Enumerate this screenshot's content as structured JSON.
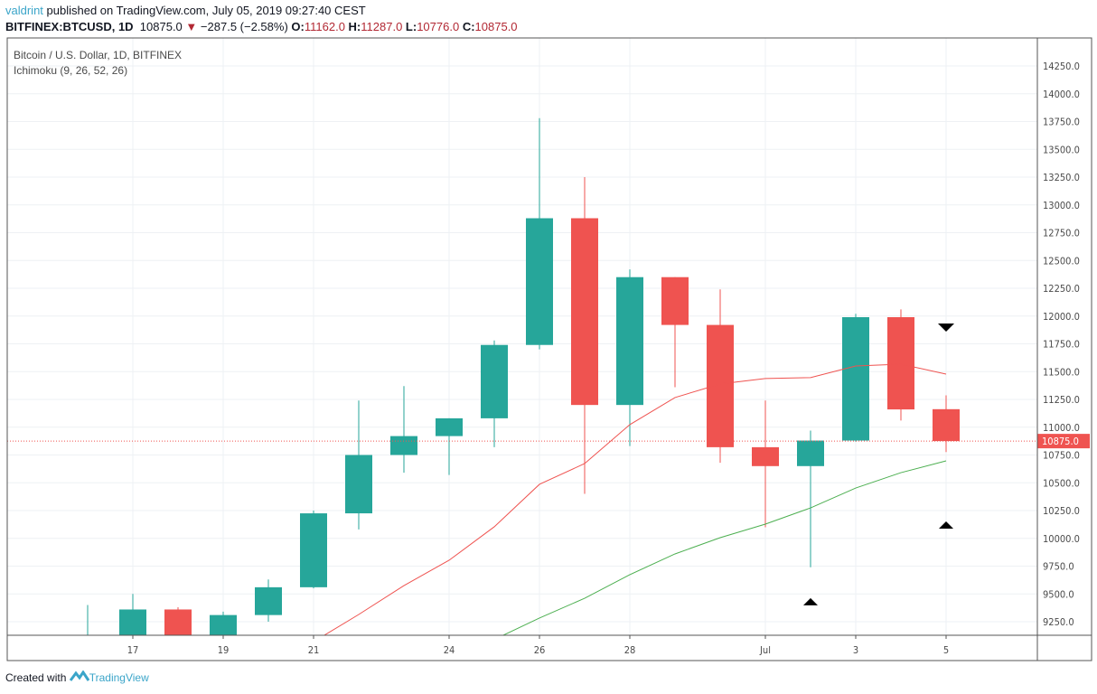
{
  "header": {
    "author": "valdrint",
    "published": " published on TradingView.com, July 05, 2019 09:27:40 CEST",
    "symbol": "BITFINEX:BTCUSD, 1D",
    "last": "10875.0",
    "change": "−287.5 (−2.58%)",
    "o_label": "O:",
    "o": "11162.0",
    "h_label": "H:",
    "h": "11287.0",
    "l_label": "L:",
    "l": "10776.0",
    "c_label": "C:",
    "c": "10875.0"
  },
  "legend": {
    "title": "Bitcoin / U.S. Dollar, 1D, BITFINEX",
    "indicator": "Ichimoku (9, 26, 52, 26)"
  },
  "footer": {
    "created": "Created with",
    "brand": "TradingView"
  },
  "chart_data": {
    "type": "candlestick",
    "ylim": [
      9150,
      14400
    ],
    "yticks": [
      9250,
      9500,
      9750,
      10000,
      10250,
      10500,
      10750,
      11000,
      11250,
      11500,
      11750,
      12000,
      12250,
      12500,
      12750,
      13000,
      13250,
      13500,
      13750,
      14000,
      14250
    ],
    "xticks": [
      {
        "day": "2019-06-17",
        "label": "17"
      },
      {
        "day": "2019-06-19",
        "label": "19"
      },
      {
        "day": "2019-06-21",
        "label": "21"
      },
      {
        "day": "2019-06-24",
        "label": "24"
      },
      {
        "day": "2019-06-26",
        "label": "26"
      },
      {
        "day": "2019-06-28",
        "label": "28"
      },
      {
        "day": "2019-07-01",
        "label": "Jul"
      },
      {
        "day": "2019-07-03",
        "label": "3"
      },
      {
        "day": "2019-07-05",
        "label": "5"
      }
    ],
    "grid": true,
    "colors": {
      "up": "#26a69a",
      "down": "#ef5350",
      "tenkan": "#ef5350",
      "kijun": "#4caf50"
    },
    "candles": [
      {
        "d": "2019-06-16",
        "o": 9000,
        "h": 9400,
        "l": 8900,
        "c": 9000
      },
      {
        "d": "2019-06-17",
        "o": 9000,
        "h": 9500,
        "l": 8950,
        "c": 9360
      },
      {
        "d": "2019-06-18",
        "o": 9360,
        "h": 9380,
        "l": 9000,
        "c": 9050
      },
      {
        "d": "2019-06-19",
        "o": 9050,
        "h": 9340,
        "l": 9000,
        "c": 9310
      },
      {
        "d": "2019-06-20",
        "o": 9310,
        "h": 9630,
        "l": 9250,
        "c": 9560
      },
      {
        "d": "2019-06-21",
        "o": 9560,
        "h": 10250,
        "l": 9550,
        "c": 10225
      },
      {
        "d": "2019-06-22",
        "o": 10225,
        "h": 11240,
        "l": 10080,
        "c": 10750
      },
      {
        "d": "2019-06-23",
        "o": 10750,
        "h": 11370,
        "l": 10590,
        "c": 10920
      },
      {
        "d": "2019-06-24",
        "o": 10920,
        "h": 11080,
        "l": 10570,
        "c": 11080
      },
      {
        "d": "2019-06-25",
        "o": 11080,
        "h": 11780,
        "l": 10820,
        "c": 11740
      },
      {
        "d": "2019-06-26",
        "o": 11740,
        "h": 13780,
        "l": 11700,
        "c": 12880
      },
      {
        "d": "2019-06-27",
        "o": 12880,
        "h": 13250,
        "l": 10400,
        "c": 11200
      },
      {
        "d": "2019-06-28",
        "o": 11200,
        "h": 12420,
        "l": 10830,
        "c": 12350
      },
      {
        "d": "2019-06-29",
        "o": 12350,
        "h": 12350,
        "l": 11360,
        "c": 11920
      },
      {
        "d": "2019-06-30",
        "o": 11920,
        "h": 12240,
        "l": 10680,
        "c": 10820
      },
      {
        "d": "2019-07-01",
        "o": 10820,
        "h": 11240,
        "l": 10100,
        "c": 10650
      },
      {
        "d": "2019-07-02",
        "o": 10650,
        "h": 10970,
        "l": 9740,
        "c": 10880
      },
      {
        "d": "2019-07-03",
        "o": 10880,
        "h": 12020,
        "l": 10870,
        "c": 11990
      },
      {
        "d": "2019-07-04",
        "o": 11990,
        "h": 12060,
        "l": 11060,
        "c": 11160
      },
      {
        "d": "2019-07-05",
        "o": 11162,
        "h": 11287,
        "l": 10776,
        "c": 10875
      }
    ],
    "tenkan": [
      [
        "2019-06-21",
        9070
      ],
      [
        "2019-06-22",
        9315
      ],
      [
        "2019-06-23",
        9575
      ],
      [
        "2019-06-24",
        9803
      ],
      [
        "2019-06-25",
        10104
      ],
      [
        "2019-06-26",
        10486
      ],
      [
        "2019-06-27",
        10673
      ],
      [
        "2019-06-28",
        11023
      ],
      [
        "2019-06-29",
        11267
      ],
      [
        "2019-06-30",
        11389
      ],
      [
        "2019-07-01",
        11438
      ],
      [
        "2019-07-02",
        11446
      ],
      [
        "2019-07-03",
        11551
      ],
      [
        "2019-07-04",
        11567
      ],
      [
        "2019-07-05",
        11478
      ]
    ],
    "kijun": [
      [
        "2019-06-25",
        9090
      ],
      [
        "2019-06-26",
        9283
      ],
      [
        "2019-06-27",
        9461
      ],
      [
        "2019-06-28",
        9673
      ],
      [
        "2019-06-29",
        9860
      ],
      [
        "2019-06-30",
        10006
      ],
      [
        "2019-07-01",
        10128
      ],
      [
        "2019-07-02",
        10274
      ],
      [
        "2019-07-03",
        10453
      ],
      [
        "2019-07-04",
        10591
      ],
      [
        "2019-07-05",
        10697
      ]
    ],
    "markers": [
      {
        "d": "2019-07-05",
        "price": 11900,
        "dir": "down"
      },
      {
        "d": "2019-07-05",
        "price": 10120,
        "dir": "up"
      },
      {
        "d": "2019-07-02",
        "price": 9430,
        "dir": "up"
      }
    ],
    "last_price": 10875,
    "last_price_label": "10875.0"
  }
}
